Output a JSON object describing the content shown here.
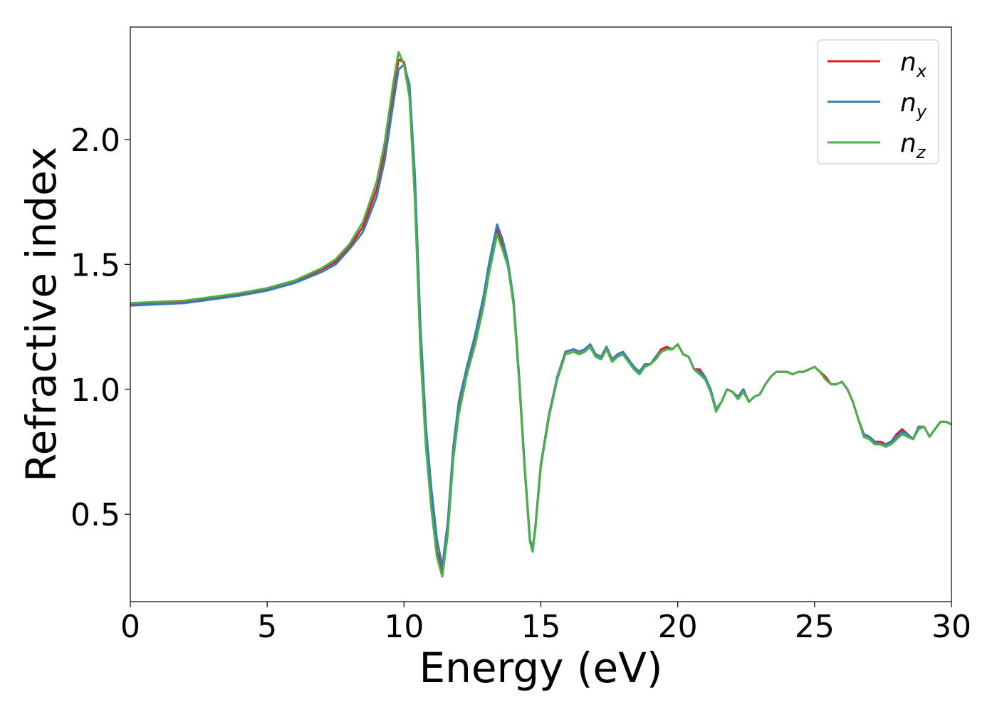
{
  "chart_data": {
    "type": "line",
    "title": "",
    "xlabel": "Energy (eV)",
    "ylabel": "Refractive index",
    "xlim": [
      0,
      30
    ],
    "ylim": [
      0.15,
      2.45
    ],
    "xticks": [
      "0",
      "5",
      "10",
      "15",
      "20",
      "25",
      "30"
    ],
    "yticks": [
      "0.5",
      "1.0",
      "1.5",
      "2.0"
    ],
    "grid": false,
    "legend": "top-right",
    "series": [
      {
        "name": "n",
        "subscript": "x",
        "color": "#e41a1c",
        "x": [
          0,
          2,
          4,
          5,
          6,
          7,
          7.5,
          8,
          8.5,
          9,
          9.3,
          9.6,
          9.8,
          10.0,
          10.2,
          10.4,
          10.6,
          10.8,
          11.0,
          11.2,
          11.4,
          11.6,
          11.8,
          12.0,
          12.3,
          12.6,
          12.9,
          13.1,
          13.4,
          13.6,
          13.8,
          14.0,
          14.2,
          14.4,
          14.6,
          14.7,
          14.8,
          15.0,
          15.3,
          15.6,
          15.9,
          16.2,
          16.4,
          16.6,
          16.8,
          17.0,
          17.2,
          17.4,
          17.6,
          17.8,
          18.0,
          18.2,
          18.4,
          18.6,
          18.8,
          19.0,
          19.2,
          19.4,
          19.6,
          19.8,
          20.0,
          20.2,
          20.4,
          20.6,
          20.8,
          21.0,
          21.2,
          21.4,
          21.6,
          21.8,
          22.0,
          22.2,
          22.4,
          22.6,
          22.8,
          23.0,
          23.2,
          23.4,
          23.6,
          23.8,
          24.0,
          24.2,
          24.4,
          24.6,
          24.8,
          25.0,
          25.2,
          25.4,
          25.6,
          25.8,
          26.0,
          26.2,
          26.4,
          26.6,
          26.8,
          27.0,
          27.2,
          27.4,
          27.6,
          27.8,
          28.0,
          28.2,
          28.4,
          28.6,
          28.8,
          29.0,
          29.2,
          29.4,
          29.6,
          29.8,
          30.0
        ],
        "y": [
          1.34,
          1.35,
          1.38,
          1.4,
          1.43,
          1.48,
          1.51,
          1.57,
          1.65,
          1.8,
          1.95,
          2.18,
          2.32,
          2.31,
          2.2,
          1.8,
          1.2,
          0.8,
          0.55,
          0.35,
          0.27,
          0.45,
          0.75,
          0.93,
          1.08,
          1.2,
          1.35,
          1.48,
          1.64,
          1.58,
          1.5,
          1.35,
          1.05,
          0.7,
          0.4,
          0.36,
          0.45,
          0.7,
          0.9,
          1.05,
          1.15,
          1.16,
          1.15,
          1.16,
          1.18,
          1.14,
          1.13,
          1.17,
          1.12,
          1.14,
          1.15,
          1.12,
          1.09,
          1.07,
          1.1,
          1.1,
          1.13,
          1.16,
          1.17,
          1.16,
          1.18,
          1.14,
          1.13,
          1.08,
          1.08,
          1.05,
          1.0,
          0.92,
          0.95,
          1.0,
          0.99,
          0.97,
          1.0,
          0.95,
          0.97,
          0.98,
          1.02,
          1.05,
          1.07,
          1.07,
          1.07,
          1.06,
          1.07,
          1.07,
          1.08,
          1.09,
          1.07,
          1.05,
          1.02,
          1.02,
          1.03,
          1.0,
          0.95,
          0.88,
          0.82,
          0.81,
          0.79,
          0.79,
          0.78,
          0.79,
          0.82,
          0.84,
          0.82,
          0.8,
          0.85,
          0.85,
          0.81,
          0.84,
          0.87,
          0.87,
          0.86
        ],
        "note": ""
      },
      {
        "name": "n",
        "subscript": "y",
        "color": "#377eb8",
        "x": [
          0,
          2,
          4,
          5,
          6,
          7,
          7.5,
          8,
          8.5,
          9,
          9.3,
          9.6,
          9.8,
          10.0,
          10.2,
          10.4,
          10.6,
          10.8,
          11.0,
          11.2,
          11.4,
          11.6,
          11.8,
          12.0,
          12.3,
          12.6,
          12.9,
          13.1,
          13.4,
          13.6,
          13.8,
          14.0,
          14.2,
          14.4,
          14.6,
          14.7,
          14.8,
          15.0,
          15.3,
          15.6,
          15.9,
          16.2,
          16.4,
          16.6,
          16.8,
          17.0,
          17.2,
          17.4,
          17.6,
          17.8,
          18.0,
          18.2,
          18.4,
          18.6,
          18.8,
          19.0,
          19.2,
          19.4,
          19.6,
          19.8,
          20.0,
          20.2,
          20.4,
          20.6,
          20.8,
          21.0,
          21.2,
          21.4,
          21.6,
          21.8,
          22.0,
          22.2,
          22.4,
          22.6,
          22.8,
          23.0,
          23.2,
          23.4,
          23.6,
          23.8,
          24.0,
          24.2,
          24.4,
          24.6,
          24.8,
          25.0,
          25.2,
          25.4,
          25.6,
          25.8,
          26.0,
          26.2,
          26.4,
          26.6,
          26.8,
          27.0,
          27.2,
          27.4,
          27.6,
          27.8,
          28.0,
          28.2,
          28.4,
          28.6,
          28.8,
          29.0,
          29.2,
          29.4,
          29.6,
          29.8,
          30.0
        ],
        "y": [
          1.335,
          1.345,
          1.375,
          1.395,
          1.425,
          1.47,
          1.5,
          1.56,
          1.63,
          1.77,
          1.92,
          2.14,
          2.28,
          2.3,
          2.22,
          1.85,
          1.25,
          0.85,
          0.6,
          0.4,
          0.29,
          0.47,
          0.77,
          0.95,
          1.09,
          1.22,
          1.37,
          1.5,
          1.66,
          1.6,
          1.51,
          1.36,
          1.06,
          0.71,
          0.4,
          0.36,
          0.45,
          0.7,
          0.9,
          1.05,
          1.15,
          1.16,
          1.15,
          1.16,
          1.18,
          1.14,
          1.13,
          1.17,
          1.12,
          1.14,
          1.15,
          1.12,
          1.09,
          1.07,
          1.1,
          1.1,
          1.13,
          1.15,
          1.16,
          1.16,
          1.18,
          1.14,
          1.13,
          1.08,
          1.07,
          1.05,
          1.0,
          0.92,
          0.95,
          1.0,
          0.99,
          0.97,
          1.0,
          0.95,
          0.97,
          0.98,
          1.02,
          1.05,
          1.07,
          1.07,
          1.07,
          1.06,
          1.07,
          1.07,
          1.08,
          1.09,
          1.07,
          1.04,
          1.02,
          1.02,
          1.03,
          1.0,
          0.95,
          0.88,
          0.82,
          0.81,
          0.79,
          0.78,
          0.78,
          0.79,
          0.81,
          0.83,
          0.82,
          0.8,
          0.85,
          0.85,
          0.81,
          0.84,
          0.87,
          0.87,
          0.86
        ],
        "note": ""
      },
      {
        "name": "n",
        "subscript": "z",
        "color": "#4daf4a",
        "x": [
          0,
          2,
          4,
          5,
          6,
          7,
          7.5,
          8,
          8.5,
          9,
          9.3,
          9.6,
          9.8,
          10.0,
          10.2,
          10.4,
          10.6,
          10.8,
          11.0,
          11.2,
          11.4,
          11.6,
          11.8,
          12.0,
          12.3,
          12.6,
          12.9,
          13.1,
          13.4,
          13.6,
          13.8,
          14.0,
          14.2,
          14.4,
          14.6,
          14.7,
          14.8,
          15.0,
          15.3,
          15.6,
          15.9,
          16.2,
          16.4,
          16.6,
          16.8,
          17.0,
          17.2,
          17.4,
          17.6,
          17.8,
          18.0,
          18.2,
          18.4,
          18.6,
          18.8,
          19.0,
          19.2,
          19.4,
          19.6,
          19.8,
          20.0,
          20.2,
          20.4,
          20.6,
          20.8,
          21.0,
          21.2,
          21.4,
          21.6,
          21.8,
          22.0,
          22.2,
          22.4,
          22.6,
          22.8,
          23.0,
          23.2,
          23.4,
          23.6,
          23.8,
          24.0,
          24.2,
          24.4,
          24.6,
          24.8,
          25.0,
          25.2,
          25.4,
          25.6,
          25.8,
          26.0,
          26.2,
          26.4,
          26.6,
          26.8,
          27.0,
          27.2,
          27.4,
          27.6,
          27.8,
          28.0,
          28.2,
          28.4,
          28.6,
          28.8,
          29.0,
          29.2,
          29.4,
          29.6,
          29.8,
          30.0
        ],
        "y": [
          1.345,
          1.355,
          1.385,
          1.405,
          1.435,
          1.485,
          1.52,
          1.58,
          1.67,
          1.83,
          1.99,
          2.22,
          2.35,
          2.3,
          2.17,
          1.75,
          1.15,
          0.77,
          0.52,
          0.33,
          0.25,
          0.42,
          0.72,
          0.9,
          1.06,
          1.18,
          1.33,
          1.46,
          1.62,
          1.56,
          1.49,
          1.34,
          1.04,
          0.69,
          0.39,
          0.35,
          0.44,
          0.69,
          0.89,
          1.04,
          1.14,
          1.15,
          1.14,
          1.15,
          1.17,
          1.13,
          1.12,
          1.16,
          1.11,
          1.13,
          1.14,
          1.11,
          1.08,
          1.06,
          1.09,
          1.1,
          1.12,
          1.15,
          1.16,
          1.16,
          1.18,
          1.14,
          1.13,
          1.08,
          1.06,
          1.04,
          0.99,
          0.91,
          0.95,
          1.0,
          0.99,
          0.96,
          0.99,
          0.95,
          0.97,
          0.98,
          1.02,
          1.05,
          1.07,
          1.07,
          1.07,
          1.06,
          1.07,
          1.07,
          1.08,
          1.09,
          1.07,
          1.04,
          1.02,
          1.02,
          1.03,
          1.0,
          0.95,
          0.88,
          0.81,
          0.8,
          0.78,
          0.78,
          0.77,
          0.78,
          0.8,
          0.82,
          0.81,
          0.8,
          0.84,
          0.85,
          0.81,
          0.84,
          0.87,
          0.87,
          0.86
        ],
        "note": ""
      }
    ]
  }
}
